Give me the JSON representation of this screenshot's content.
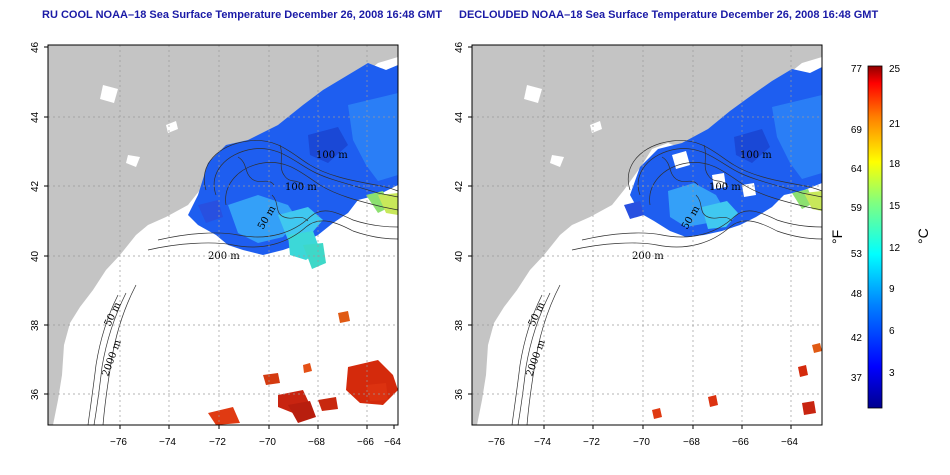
{
  "panels": [
    {
      "id": "left",
      "title": "RU COOL NOAA–18 Sea Surface Temperature December 26, 2008 16:48 GMT",
      "contour_labels": [
        "100 m",
        "100 m",
        "50 m",
        "200 m",
        "50 m",
        "2000 m"
      ]
    },
    {
      "id": "right",
      "title": "DECLOUDED NOAA–18 Sea Surface Temperature December 26, 2008 16:48 GMT",
      "contour_labels": [
        "100 m",
        "100 m",
        "50 m",
        "200 m",
        "50 m",
        "2000 m"
      ]
    }
  ],
  "axes": {
    "lon_ticks": [
      "−76",
      "−74",
      "−72",
      "−70",
      "−68",
      "−66",
      "−64"
    ],
    "lat_ticks": [
      "46",
      "44",
      "42",
      "40",
      "38",
      "36"
    ]
  },
  "colorbar": {
    "fahrenheit_ticks": [
      "77",
      "69",
      "64",
      "59",
      "53",
      "48",
      "42",
      "37"
    ],
    "celsius_ticks": [
      "25",
      "21",
      "18",
      "15",
      "12",
      "9",
      "6",
      "3"
    ],
    "fahrenheit_unit": "°F",
    "celsius_unit": "°C"
  },
  "colors": {
    "land": "#c4c4c4",
    "title": "#1a1aa6",
    "cold": "#1e5ef0",
    "warm": "#d42a0c"
  }
}
